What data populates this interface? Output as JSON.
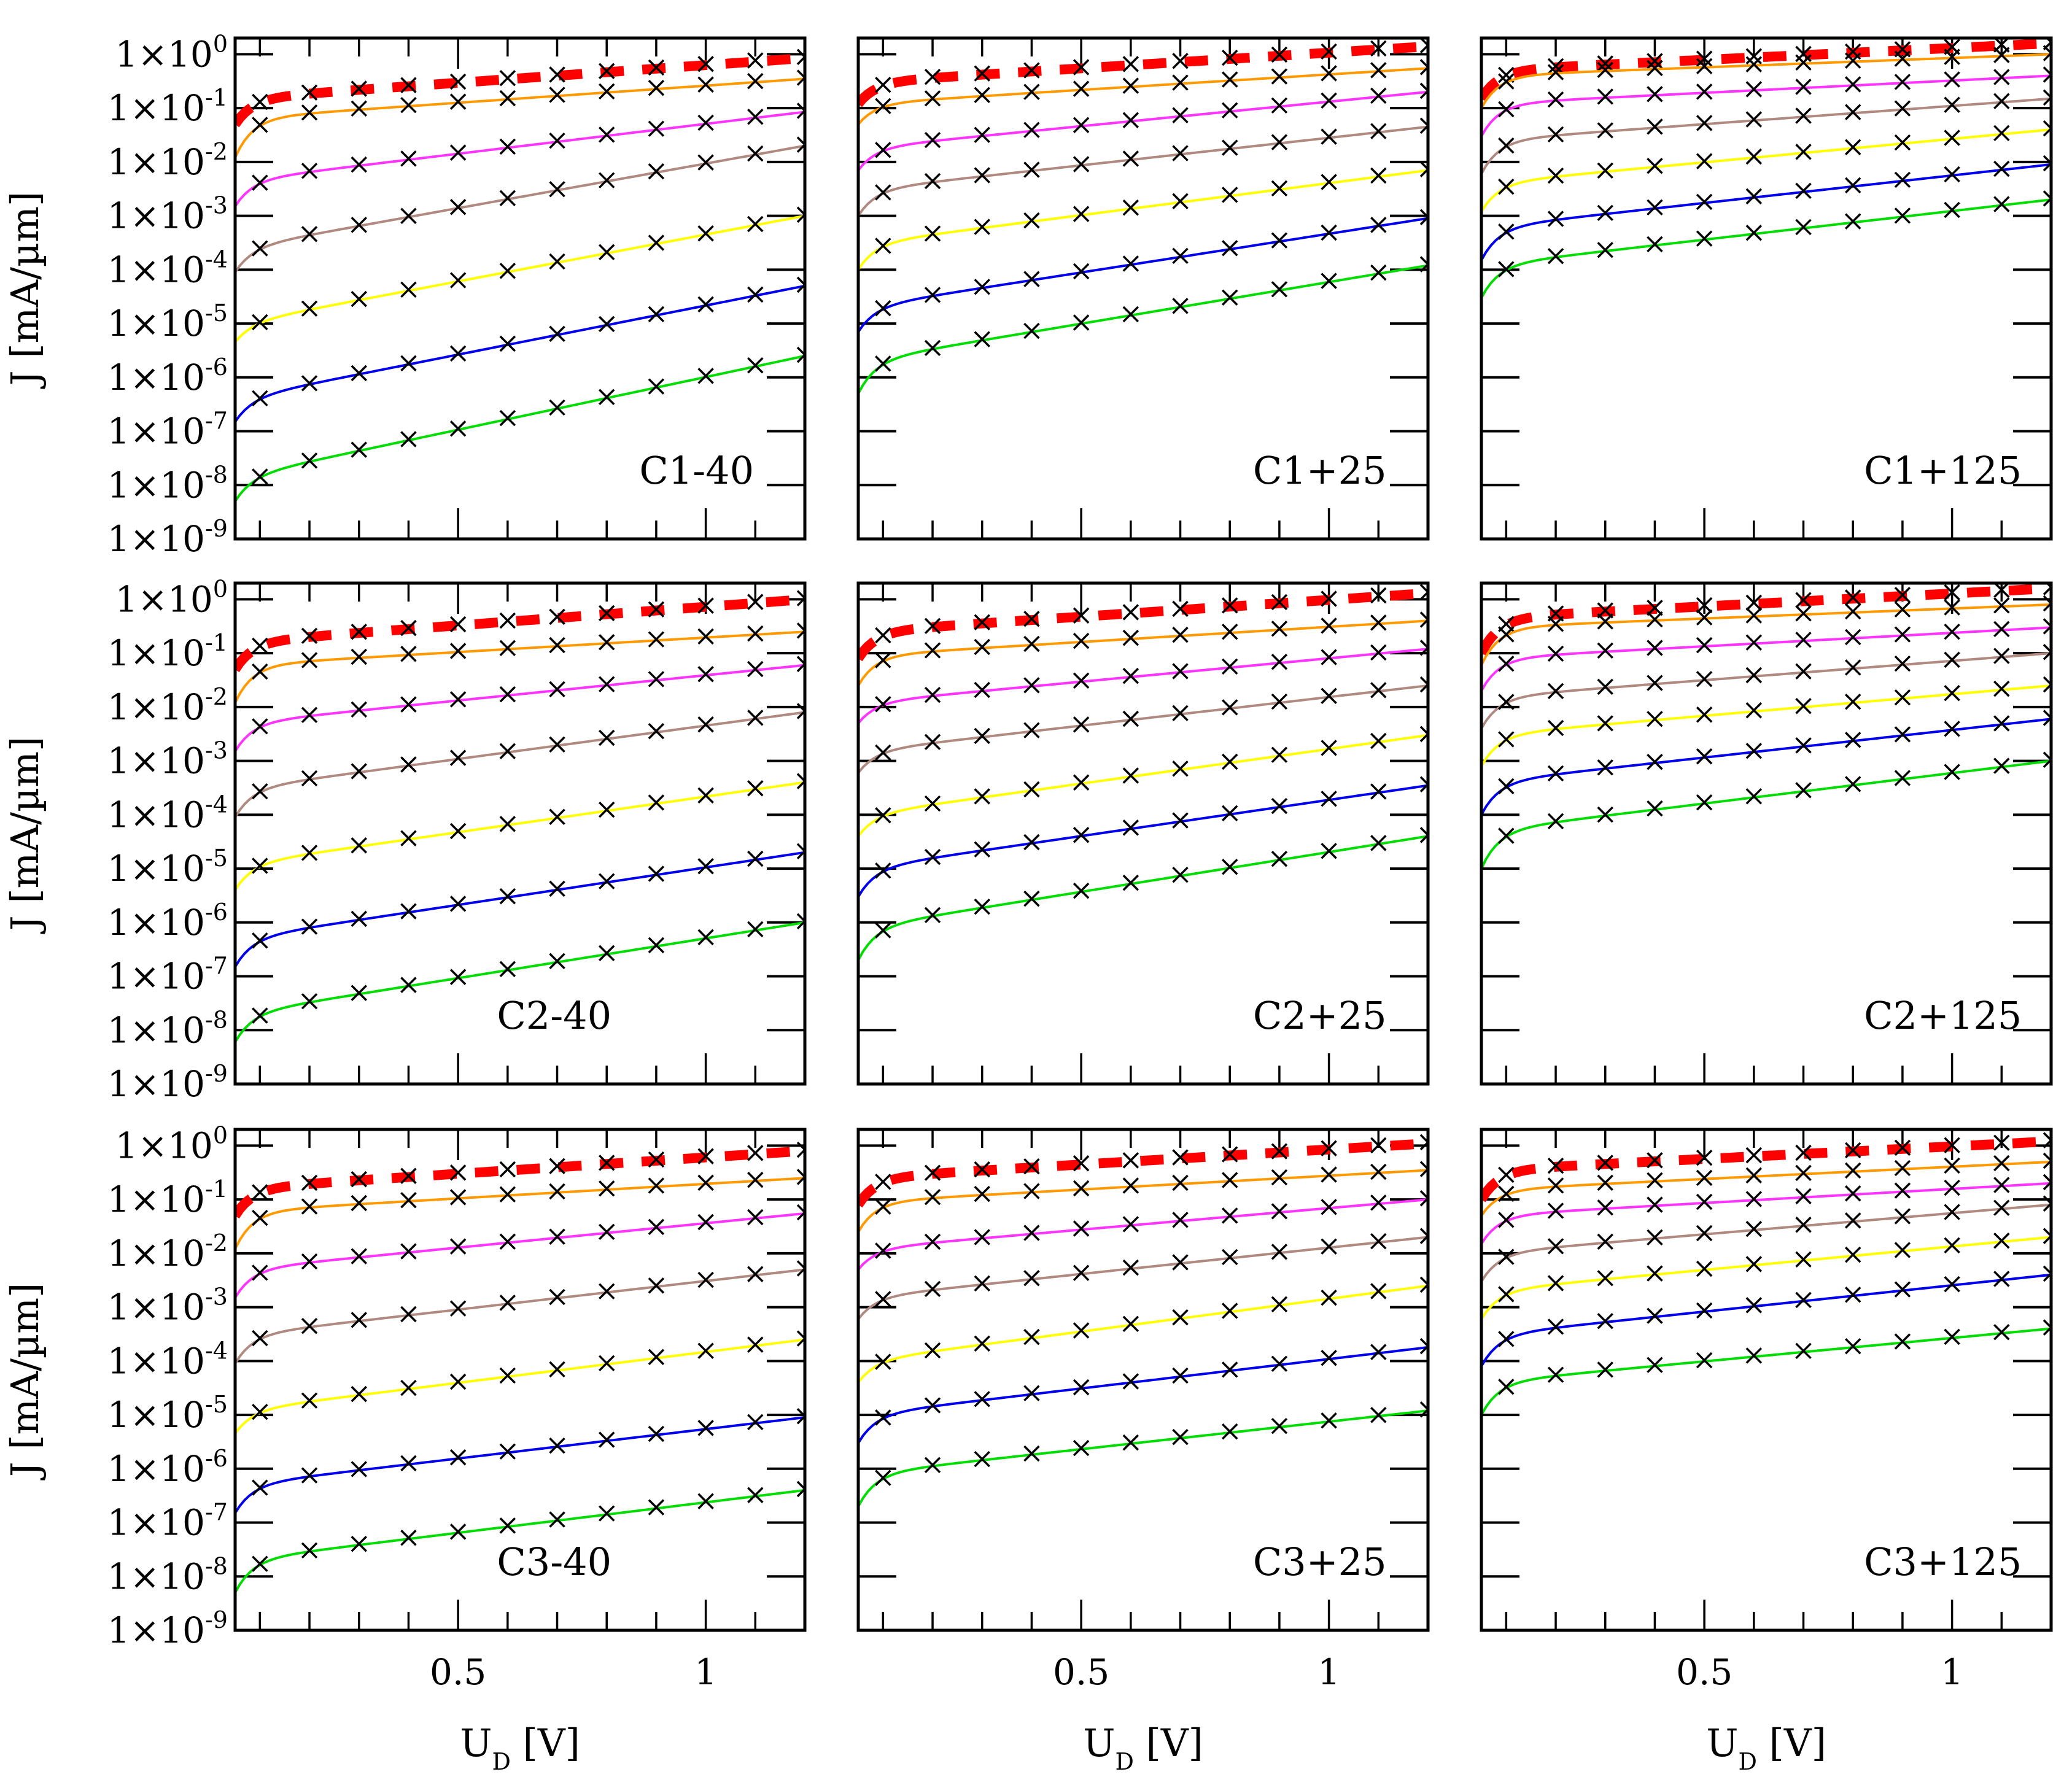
{
  "figure": {
    "y_axis_title": "J [mA/µm]",
    "x_axis_title_main": "U",
    "x_axis_title_sub": "D",
    "x_axis_title_unit": " [V]"
  },
  "chart_data": {
    "type": "line",
    "grid": false,
    "xlim": [
      0.05,
      1.2
    ],
    "ylim": [
      1e-09,
      2
    ],
    "y_scale": "log",
    "x_ticks": [
      0.5,
      1
    ],
    "x_tick_labels": [
      "0.5",
      "1"
    ],
    "y_ticks": [
      1e-09,
      1e-08,
      1e-07,
      1e-06,
      1e-05,
      0.0001,
      0.001,
      0.01,
      0.1,
      1
    ],
    "y_tick_labels": [
      {
        "mantissa": "1×10",
        "exp": "-9"
      },
      {
        "mantissa": "1×10",
        "exp": "-8"
      },
      {
        "mantissa": "1×10",
        "exp": "-7"
      },
      {
        "mantissa": "1×10",
        "exp": "-6"
      },
      {
        "mantissa": "1×10",
        "exp": "-5"
      },
      {
        "mantissa": "1×10",
        "exp": "-4"
      },
      {
        "mantissa": "1×10",
        "exp": "-3"
      },
      {
        "mantissa": "1×10",
        "exp": "-2"
      },
      {
        "mantissa": "1×10",
        "exp": "-1"
      },
      {
        "mantissa": "1×10",
        "exp": "0"
      }
    ],
    "series_colors": [
      "#ff0000",
      "#ff9900",
      "#ff33ff",
      "#b08a80",
      "#ffff00",
      "#0000ee",
      "#00dd00"
    ],
    "marker_x": [
      0.1,
      0.2,
      0.3,
      0.4,
      0.5,
      0.6,
      0.7,
      0.8,
      0.9,
      1.0,
      1.1,
      1.2
    ],
    "panels": [
      {
        "label": "C1-40",
        "label_pos": "bottom-right",
        "series": [
          {
            "J0": 0.05,
            "J1": 0.85,
            "Jb": 0.15
          },
          {
            "J0": 0.012,
            "J1": 0.35,
            "Jb": 0.065
          },
          {
            "J0": 0.0015,
            "J1": 0.085,
            "Jb": 0.0045
          },
          {
            "J0": 9e-05,
            "J1": 0.02,
            "Jb": 0.00025
          },
          {
            "J0": 4.5e-06,
            "J1": 0.001,
            "Jb": 1e-05
          },
          {
            "J0": 1.5e-07,
            "J1": 5e-05,
            "Jb": 4e-07
          },
          {
            "J0": 5e-09,
            "J1": 2.5e-06,
            "Jb": 1.4e-08
          }
        ]
      },
      {
        "label": "C1+25",
        "label_pos": "bottom-right",
        "series": [
          {
            "J0": 0.12,
            "J1": 1.4,
            "Jb": 0.3
          },
          {
            "J0": 0.05,
            "J1": 0.55,
            "Jb": 0.12
          },
          {
            "J0": 0.007,
            "J1": 0.2,
            "Jb": 0.018
          },
          {
            "J0": 0.001,
            "J1": 0.045,
            "Jb": 0.003
          },
          {
            "J0": 0.0001,
            "J1": 0.007,
            "Jb": 0.0003
          },
          {
            "J0": 7e-06,
            "J1": 0.0009,
            "Jb": 2e-05
          },
          {
            "J0": 5e-07,
            "J1": 0.00012,
            "Jb": 2e-06
          }
        ]
      },
      {
        "label": "C1+125",
        "label_pos": "bottom-right",
        "series": [
          {
            "J0": 0.15,
            "J1": 1.6,
            "Jb": 0.5
          },
          {
            "J0": 0.1,
            "J1": 1.0,
            "Jb": 0.4
          },
          {
            "J0": 0.03,
            "J1": 0.4,
            "Jb": 0.12
          },
          {
            "J0": 0.006,
            "J1": 0.15,
            "Jb": 0.025
          },
          {
            "J0": 0.0012,
            "J1": 0.04,
            "Jb": 0.004
          },
          {
            "J0": 0.00015,
            "J1": 0.009,
            "Jb": 0.0006
          },
          {
            "J0": 3e-05,
            "J1": 0.002,
            "Jb": 0.00012
          }
        ]
      },
      {
        "label": "C2-40",
        "label_pos": "bottom-center",
        "series": [
          {
            "J0": 0.05,
            "J1": 1.0,
            "Jb": 0.16
          },
          {
            "J0": 0.012,
            "J1": 0.25,
            "Jb": 0.06
          },
          {
            "J0": 0.0015,
            "J1": 0.06,
            "Jb": 0.005
          },
          {
            "J0": 9e-05,
            "J1": 0.008,
            "Jb": 0.0003
          },
          {
            "J0": 4e-06,
            "J1": 0.0004,
            "Jb": 1.2e-05
          },
          {
            "J0": 1.5e-07,
            "J1": 2e-05,
            "Jb": 5e-07
          },
          {
            "J0": 6e-09,
            "J1": 1e-06,
            "Jb": 2e-08
          }
        ]
      },
      {
        "label": "C2+25",
        "label_pos": "bottom-right",
        "series": [
          {
            "J0": 0.08,
            "J1": 1.3,
            "Jb": 0.25
          },
          {
            "J0": 0.025,
            "J1": 0.4,
            "Jb": 0.09
          },
          {
            "J0": 0.005,
            "J1": 0.12,
            "Jb": 0.012
          },
          {
            "J0": 0.0006,
            "J1": 0.025,
            "Jb": 0.0015
          },
          {
            "J0": 4e-05,
            "J1": 0.003,
            "Jb": 0.0001
          },
          {
            "J0": 3e-06,
            "J1": 0.00035,
            "Jb": 1e-05
          },
          {
            "J0": 2e-07,
            "J1": 4e-05,
            "Jb": 8e-07
          }
        ]
      },
      {
        "label": "C2+125",
        "label_pos": "bottom-right",
        "series": [
          {
            "J0": 0.1,
            "J1": 1.6,
            "Jb": 0.45
          },
          {
            "J0": 0.06,
            "J1": 0.8,
            "Jb": 0.3
          },
          {
            "J0": 0.02,
            "J1": 0.3,
            "Jb": 0.08
          },
          {
            "J0": 0.004,
            "J1": 0.1,
            "Jb": 0.015
          },
          {
            "J0": 0.0008,
            "J1": 0.025,
            "Jb": 0.003
          },
          {
            "J0": 0.0001,
            "J1": 0.006,
            "Jb": 0.0004
          },
          {
            "J0": 1e-05,
            "J1": 0.001,
            "Jb": 5e-05
          }
        ]
      },
      {
        "label": "C3-40",
        "label_pos": "bottom-center",
        "series": [
          {
            "J0": 0.05,
            "J1": 0.8,
            "Jb": 0.16
          },
          {
            "J0": 0.012,
            "J1": 0.25,
            "Jb": 0.06
          },
          {
            "J0": 0.0015,
            "J1": 0.055,
            "Jb": 0.005
          },
          {
            "J0": 9e-05,
            "J1": 0.005,
            "Jb": 0.0003
          },
          {
            "J0": 4.5e-06,
            "J1": 0.00025,
            "Jb": 1.2e-05
          },
          {
            "J0": 1.5e-07,
            "J1": 9e-06,
            "Jb": 5e-07
          },
          {
            "J0": 5e-09,
            "J1": 4e-07,
            "Jb": 2e-08
          }
        ]
      },
      {
        "label": "C3+25",
        "label_pos": "bottom-right",
        "series": [
          {
            "J0": 0.08,
            "J1": 1.1,
            "Jb": 0.25
          },
          {
            "J0": 0.025,
            "J1": 0.35,
            "Jb": 0.09
          },
          {
            "J0": 0.005,
            "J1": 0.1,
            "Jb": 0.012
          },
          {
            "J0": 0.0006,
            "J1": 0.02,
            "Jb": 0.0015
          },
          {
            "J0": 4e-05,
            "J1": 0.0025,
            "Jb": 0.0001
          },
          {
            "J0": 3e-06,
            "J1": 0.00018,
            "Jb": 1e-05
          },
          {
            "J0": 2e-07,
            "J1": 1.2e-05,
            "Jb": 8e-07
          }
        ]
      },
      {
        "label": "C3+125",
        "label_pos": "bottom-right",
        "series": [
          {
            "J0": 0.1,
            "J1": 1.2,
            "Jb": 0.35
          },
          {
            "J0": 0.05,
            "J1": 0.5,
            "Jb": 0.15
          },
          {
            "J0": 0.015,
            "J1": 0.2,
            "Jb": 0.05
          },
          {
            "J0": 0.003,
            "J1": 0.08,
            "Jb": 0.01
          },
          {
            "J0": 0.0006,
            "J1": 0.02,
            "Jb": 0.002
          },
          {
            "J0": 8e-05,
            "J1": 0.004,
            "Jb": 0.0003
          },
          {
            "J0": 1e-05,
            "J1": 0.0004,
            "Jb": 4e-05
          }
        ]
      }
    ]
  }
}
